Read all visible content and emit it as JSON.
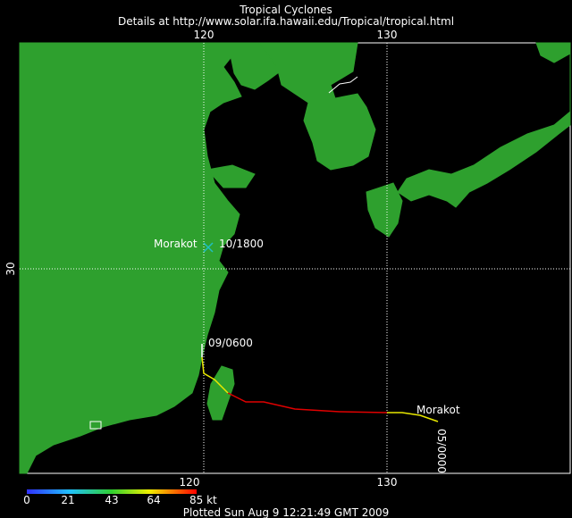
{
  "header": {
    "title": "Tropical Cyclones",
    "subtitle": "Details at http://www.solar.ifa.hawaii.edu/Tropical/tropical.html"
  },
  "axes": {
    "top": [
      "120",
      "130"
    ],
    "bottom": [
      "120",
      "130"
    ],
    "left": [
      "30"
    ]
  },
  "storm": {
    "name_current": "Morakot",
    "time_current": "10/1800",
    "time_mid": "09/0600",
    "name_start": "Morakot",
    "time_start": "05/0000"
  },
  "legend": {
    "labels": [
      "0",
      "21",
      "43",
      "64",
      "85 kt"
    ]
  },
  "footer": "Plotted Sun Aug 9 12:21:49 GMT 2009"
}
